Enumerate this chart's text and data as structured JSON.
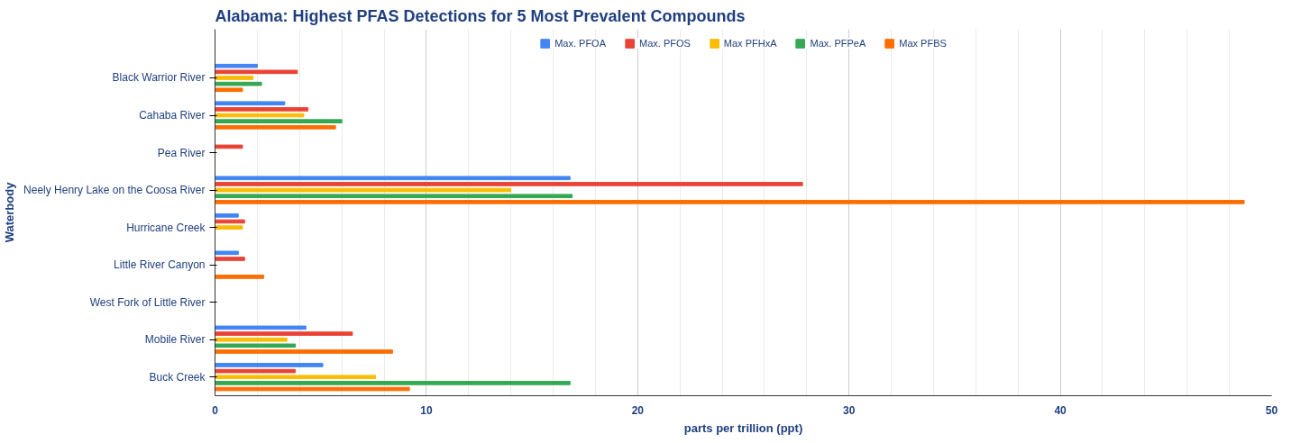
{
  "chart_data": {
    "type": "bar",
    "orientation": "horizontal",
    "title": "Alabama: Highest PFAS Detections for 5 Most Prevalent Compounds",
    "xlabel": "parts per trillion (ppt)",
    "ylabel": "Waterbody",
    "categories": [
      "Black Warrior River",
      "Cahaba River",
      "Pea River",
      "Neely Henry Lake on the Coosa River",
      "Hurricane Creek",
      "Little River Canyon",
      "West Fork of Little River",
      "Mobile River",
      "Buck Creek"
    ],
    "series": [
      {
        "name": "Max. PFOA",
        "color": "#4285f4",
        "values": [
          2.0,
          3.3,
          null,
          16.8,
          1.1,
          1.1,
          null,
          4.3,
          5.1
        ]
      },
      {
        "name": "Max. PFOS",
        "color": "#ea4335",
        "values": [
          3.9,
          4.4,
          1.3,
          27.8,
          1.4,
          1.4,
          null,
          6.5,
          3.8
        ]
      },
      {
        "name": "Max PFHxA",
        "color": "#fbbc04",
        "values": [
          1.8,
          4.2,
          null,
          14.0,
          1.3,
          null,
          null,
          3.4,
          7.6
        ]
      },
      {
        "name": "Max. PFPeA",
        "color": "#34a853",
        "values": [
          2.2,
          6.0,
          null,
          16.9,
          null,
          null,
          null,
          3.8,
          16.8
        ]
      },
      {
        "name": "Max PFBS",
        "color": "#ff6d01",
        "values": [
          1.3,
          5.7,
          null,
          48.7,
          null,
          2.3,
          null,
          8.4,
          9.2
        ]
      }
    ],
    "xlim": [
      0,
      50
    ],
    "xticks": [
      0,
      10,
      20,
      30,
      40,
      50
    ],
    "grid": "x",
    "legend": "top"
  }
}
